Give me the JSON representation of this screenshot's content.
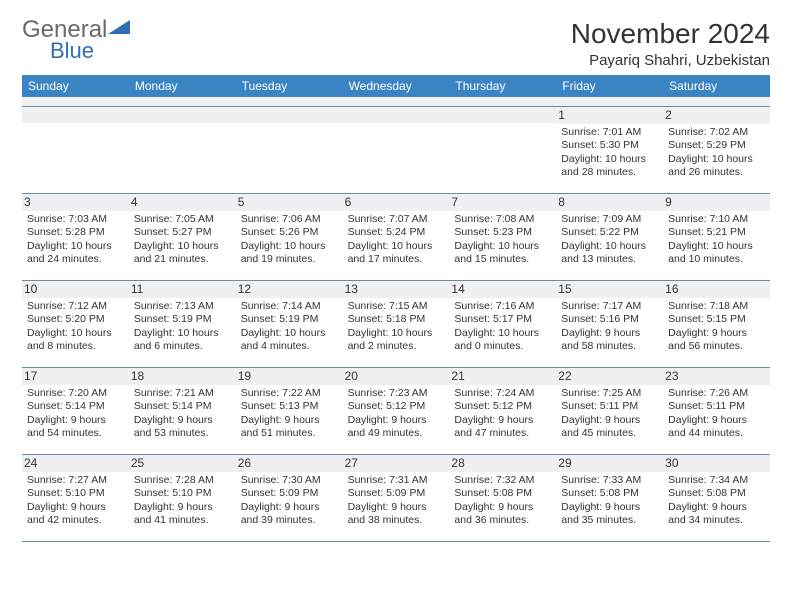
{
  "brand": {
    "word1": "General",
    "word2": "Blue",
    "word1_color": "#6a6a6a",
    "word2_color": "#2f6fb2",
    "triangle_color": "#2f6fb2"
  },
  "header": {
    "title": "November 2024",
    "subtitle": "Payariq Shahri, Uzbekistan"
  },
  "colors": {
    "header_bg": "#3b84c4",
    "header_text": "#ffffff",
    "daynum_bg": "#eef0f2",
    "rule": "#6a8bb0",
    "page_bg": "#ffffff",
    "text": "#333333"
  },
  "weekdays": [
    "Sunday",
    "Monday",
    "Tuesday",
    "Wednesday",
    "Thursday",
    "Friday",
    "Saturday"
  ],
  "weeks": [
    [
      {
        "n": "",
        "sunrise": "",
        "sunset": "",
        "daylight": ""
      },
      {
        "n": "",
        "sunrise": "",
        "sunset": "",
        "daylight": ""
      },
      {
        "n": "",
        "sunrise": "",
        "sunset": "",
        "daylight": ""
      },
      {
        "n": "",
        "sunrise": "",
        "sunset": "",
        "daylight": ""
      },
      {
        "n": "",
        "sunrise": "",
        "sunset": "",
        "daylight": ""
      },
      {
        "n": "1",
        "sunrise": "Sunrise: 7:01 AM",
        "sunset": "Sunset: 5:30 PM",
        "daylight": "Daylight: 10 hours and 28 minutes."
      },
      {
        "n": "2",
        "sunrise": "Sunrise: 7:02 AM",
        "sunset": "Sunset: 5:29 PM",
        "daylight": "Daylight: 10 hours and 26 minutes."
      }
    ],
    [
      {
        "n": "3",
        "sunrise": "Sunrise: 7:03 AM",
        "sunset": "Sunset: 5:28 PM",
        "daylight": "Daylight: 10 hours and 24 minutes."
      },
      {
        "n": "4",
        "sunrise": "Sunrise: 7:05 AM",
        "sunset": "Sunset: 5:27 PM",
        "daylight": "Daylight: 10 hours and 21 minutes."
      },
      {
        "n": "5",
        "sunrise": "Sunrise: 7:06 AM",
        "sunset": "Sunset: 5:26 PM",
        "daylight": "Daylight: 10 hours and 19 minutes."
      },
      {
        "n": "6",
        "sunrise": "Sunrise: 7:07 AM",
        "sunset": "Sunset: 5:24 PM",
        "daylight": "Daylight: 10 hours and 17 minutes."
      },
      {
        "n": "7",
        "sunrise": "Sunrise: 7:08 AM",
        "sunset": "Sunset: 5:23 PM",
        "daylight": "Daylight: 10 hours and 15 minutes."
      },
      {
        "n": "8",
        "sunrise": "Sunrise: 7:09 AM",
        "sunset": "Sunset: 5:22 PM",
        "daylight": "Daylight: 10 hours and 13 minutes."
      },
      {
        "n": "9",
        "sunrise": "Sunrise: 7:10 AM",
        "sunset": "Sunset: 5:21 PM",
        "daylight": "Daylight: 10 hours and 10 minutes."
      }
    ],
    [
      {
        "n": "10",
        "sunrise": "Sunrise: 7:12 AM",
        "sunset": "Sunset: 5:20 PM",
        "daylight": "Daylight: 10 hours and 8 minutes."
      },
      {
        "n": "11",
        "sunrise": "Sunrise: 7:13 AM",
        "sunset": "Sunset: 5:19 PM",
        "daylight": "Daylight: 10 hours and 6 minutes."
      },
      {
        "n": "12",
        "sunrise": "Sunrise: 7:14 AM",
        "sunset": "Sunset: 5:19 PM",
        "daylight": "Daylight: 10 hours and 4 minutes."
      },
      {
        "n": "13",
        "sunrise": "Sunrise: 7:15 AM",
        "sunset": "Sunset: 5:18 PM",
        "daylight": "Daylight: 10 hours and 2 minutes."
      },
      {
        "n": "14",
        "sunrise": "Sunrise: 7:16 AM",
        "sunset": "Sunset: 5:17 PM",
        "daylight": "Daylight: 10 hours and 0 minutes."
      },
      {
        "n": "15",
        "sunrise": "Sunrise: 7:17 AM",
        "sunset": "Sunset: 5:16 PM",
        "daylight": "Daylight: 9 hours and 58 minutes."
      },
      {
        "n": "16",
        "sunrise": "Sunrise: 7:18 AM",
        "sunset": "Sunset: 5:15 PM",
        "daylight": "Daylight: 9 hours and 56 minutes."
      }
    ],
    [
      {
        "n": "17",
        "sunrise": "Sunrise: 7:20 AM",
        "sunset": "Sunset: 5:14 PM",
        "daylight": "Daylight: 9 hours and 54 minutes."
      },
      {
        "n": "18",
        "sunrise": "Sunrise: 7:21 AM",
        "sunset": "Sunset: 5:14 PM",
        "daylight": "Daylight: 9 hours and 53 minutes."
      },
      {
        "n": "19",
        "sunrise": "Sunrise: 7:22 AM",
        "sunset": "Sunset: 5:13 PM",
        "daylight": "Daylight: 9 hours and 51 minutes."
      },
      {
        "n": "20",
        "sunrise": "Sunrise: 7:23 AM",
        "sunset": "Sunset: 5:12 PM",
        "daylight": "Daylight: 9 hours and 49 minutes."
      },
      {
        "n": "21",
        "sunrise": "Sunrise: 7:24 AM",
        "sunset": "Sunset: 5:12 PM",
        "daylight": "Daylight: 9 hours and 47 minutes."
      },
      {
        "n": "22",
        "sunrise": "Sunrise: 7:25 AM",
        "sunset": "Sunset: 5:11 PM",
        "daylight": "Daylight: 9 hours and 45 minutes."
      },
      {
        "n": "23",
        "sunrise": "Sunrise: 7:26 AM",
        "sunset": "Sunset: 5:11 PM",
        "daylight": "Daylight: 9 hours and 44 minutes."
      }
    ],
    [
      {
        "n": "24",
        "sunrise": "Sunrise: 7:27 AM",
        "sunset": "Sunset: 5:10 PM",
        "daylight": "Daylight: 9 hours and 42 minutes."
      },
      {
        "n": "25",
        "sunrise": "Sunrise: 7:28 AM",
        "sunset": "Sunset: 5:10 PM",
        "daylight": "Daylight: 9 hours and 41 minutes."
      },
      {
        "n": "26",
        "sunrise": "Sunrise: 7:30 AM",
        "sunset": "Sunset: 5:09 PM",
        "daylight": "Daylight: 9 hours and 39 minutes."
      },
      {
        "n": "27",
        "sunrise": "Sunrise: 7:31 AM",
        "sunset": "Sunset: 5:09 PM",
        "daylight": "Daylight: 9 hours and 38 minutes."
      },
      {
        "n": "28",
        "sunrise": "Sunrise: 7:32 AM",
        "sunset": "Sunset: 5:08 PM",
        "daylight": "Daylight: 9 hours and 36 minutes."
      },
      {
        "n": "29",
        "sunrise": "Sunrise: 7:33 AM",
        "sunset": "Sunset: 5:08 PM",
        "daylight": "Daylight: 9 hours and 35 minutes."
      },
      {
        "n": "30",
        "sunrise": "Sunrise: 7:34 AM",
        "sunset": "Sunset: 5:08 PM",
        "daylight": "Daylight: 9 hours and 34 minutes."
      }
    ]
  ]
}
